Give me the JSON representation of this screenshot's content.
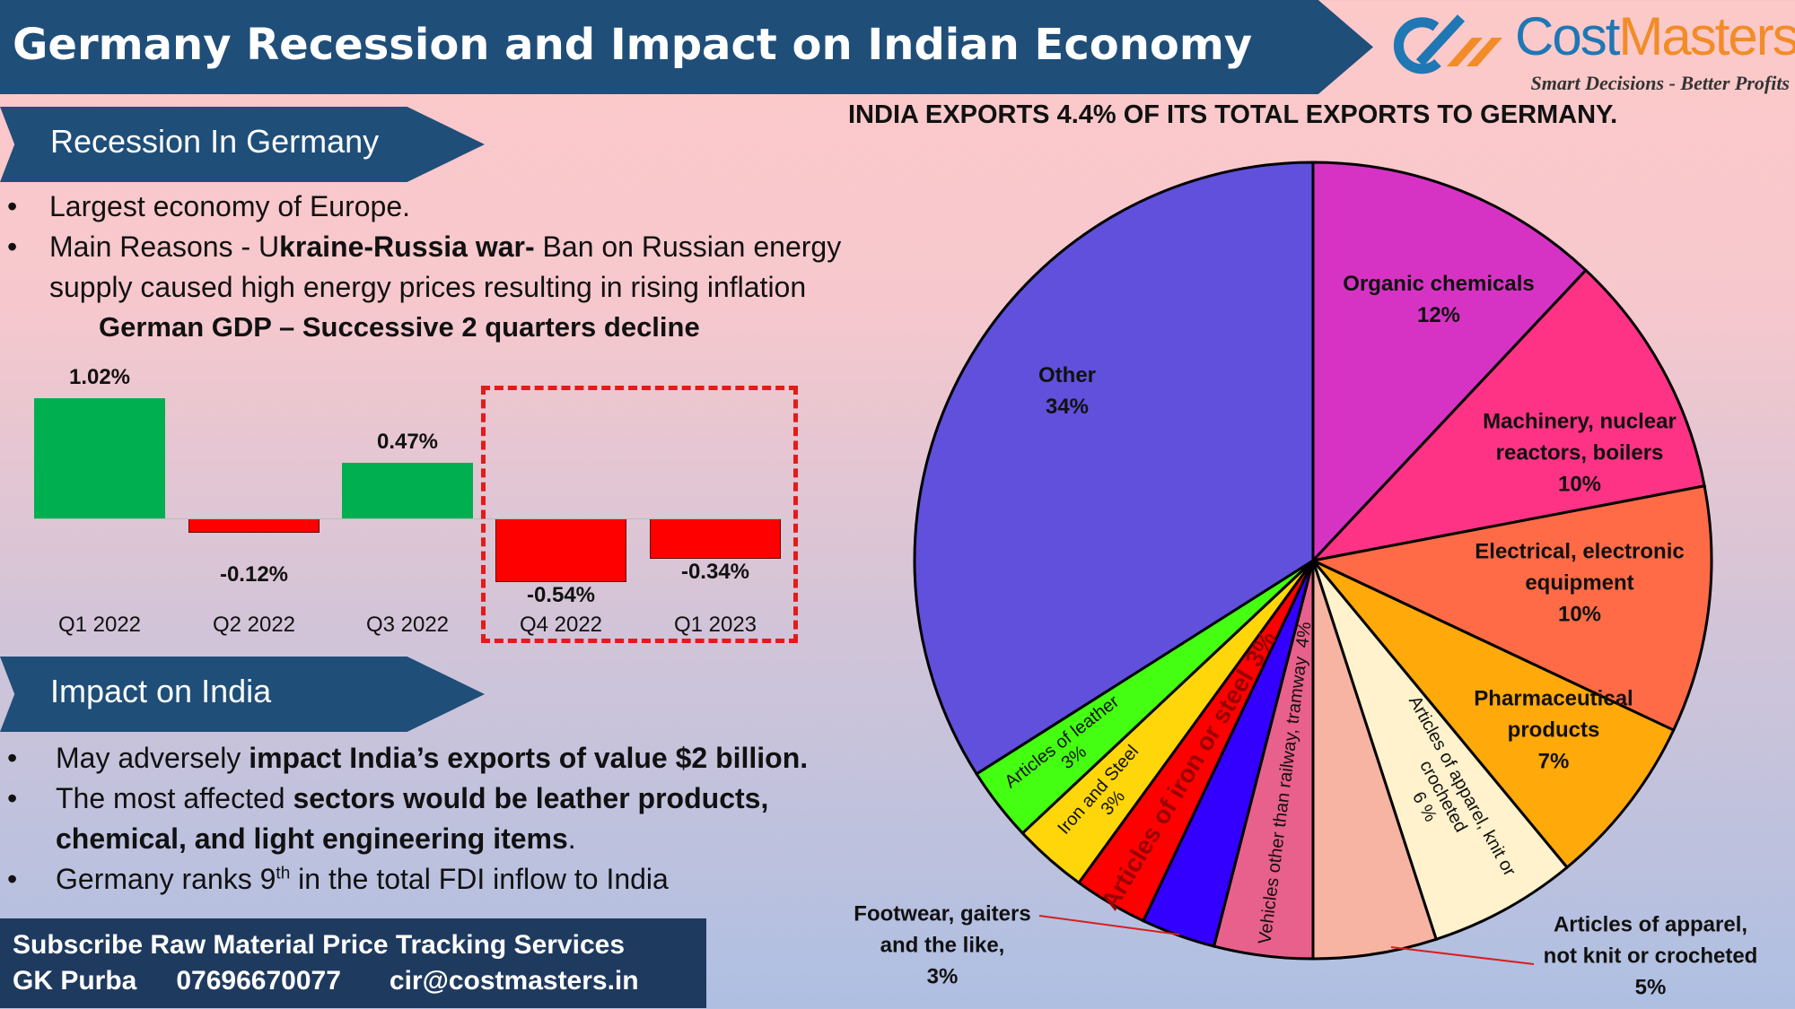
{
  "title": "Germany Recession and Impact on Indian Economy",
  "logo": {
    "brand_a": "Cost",
    "brand_b": "Masters",
    "tagline": "Smart Decisions - Better Profits"
  },
  "headline": "INDIA EXPORTS 4.4% OF ITS TOTAL EXPORTS TO GERMANY.",
  "recession": {
    "header": "Recession In Germany",
    "bullet1": "Largest economy of Europe.",
    "bullet2a": "Main Reasons - U",
    "bullet2b": "kraine-Russia war-",
    "bullet2c": "  Ban on Russian energy supply caused high energy prices resulting in rising inflation"
  },
  "colors": {
    "accent": "#1f4e79",
    "positive": "#00b050",
    "negative": "#ff0000",
    "highlight_box": "#e31b1b"
  },
  "impact": {
    "header": "Impact on India",
    "b1a": "May adversely ",
    "b1b": "impact India’s exports of value $2 billion.",
    "b2a": "The most affected ",
    "b2b": "sectors would be leather products, chemical, and light engineering items",
    "b2c": ".",
    "b3a": "Germany ranks 9",
    "b3sup": "th",
    "b3b": " in the total FDI inflow to India"
  },
  "footer": {
    "line1": "Subscribe Raw Material Price Tracking Services",
    "name": "GK Purba",
    "phone": "07696670077",
    "email": "cir@costmasters.in"
  },
  "chart_data": [
    {
      "type": "bar",
      "title": "German GDP – Successive 2 quarters decline",
      "categories": [
        "Q1 2022",
        "Q2 2022",
        "Q3 2022",
        "Q4 2022",
        "Q1 2023"
      ],
      "values": [
        1.02,
        -0.12,
        0.47,
        -0.54,
        -0.34
      ],
      "labels": [
        "1.02%",
        "-0.12%",
        "0.47%",
        "-0.54%",
        "-0.34%"
      ],
      "highlighted": [
        "Q4 2022",
        "Q1 2023"
      ]
    },
    {
      "type": "pie",
      "title": "",
      "slices": [
        {
          "label": "Organic chemicals",
          "pct_label": "12%",
          "value": 12,
          "color": "#d633c4"
        },
        {
          "label": "Machinery, nuclear reactors, boilers",
          "pct_label": "10%",
          "value": 10,
          "color": "#ff3385"
        },
        {
          "label": "Electrical, electronic equipment",
          "pct_label": "10%",
          "value": 10,
          "color": "#ff6b47"
        },
        {
          "label": "Pharmaceutical products",
          "pct_label": "7%",
          "value": 7,
          "color": "#ffa90a"
        },
        {
          "label": "Articles of apparel, knit or crocheted",
          "pct_label": "6 %",
          "value": 6,
          "color": "#fff2cc"
        },
        {
          "label": "Articles of apparel, not knit or crocheted",
          "pct_label": "5%",
          "value": 5,
          "color": "#f8b4a2"
        },
        {
          "label": "Vehicles other than railway, tramway",
          "pct_label": "4%",
          "value": 4,
          "color": "#e8608c"
        },
        {
          "label": "Footwear, gaiters and the like,",
          "pct_label": "3%",
          "value": 3,
          "color": "#3300ff"
        },
        {
          "label": "Articles of iron or steel",
          "pct_label": "3%",
          "value": 3,
          "color": "#ff0000"
        },
        {
          "label": "Iron and Steel",
          "pct_label": "3%",
          "value": 3,
          "color": "#ffd60a"
        },
        {
          "label": "Articles of leather",
          "pct_label": "3%",
          "value": 3,
          "color": "#44ff11"
        },
        {
          "label": "Other",
          "pct_label": "34%",
          "value": 34,
          "color": "#6050dc"
        }
      ]
    }
  ]
}
